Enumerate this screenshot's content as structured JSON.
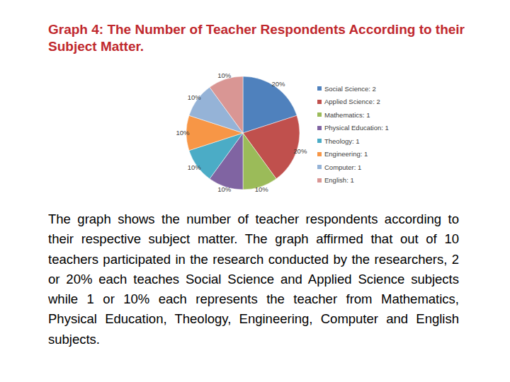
{
  "chart_data": {
    "type": "pie",
    "title": "Graph 4: The Number of Teacher Respondents According to their Subject Matter.",
    "categories": [
      "Social Science: 2",
      "Applied Science: 2",
      "Mathematics: 1",
      "Physical Education: 1",
      "Theology: 1",
      "Engineering: 1",
      "Computer: 1",
      "English: 1"
    ],
    "values": [
      20,
      20,
      10,
      10,
      10,
      10,
      10,
      10
    ],
    "value_labels": [
      "20%",
      "20%",
      "10%",
      "10%",
      "10%",
      "10%",
      "10%",
      "10%"
    ],
    "colors": [
      "#4f81bd",
      "#c0504d",
      "#9bbb59",
      "#8064a2",
      "#4bacc6",
      "#f79646",
      "#95b3d7",
      "#d99694"
    ],
    "data_labels": true,
    "legend": "right",
    "caption": "The graph shows the number of teacher respondents according to their respective subject matter. The graph affirmed that out of 10 teachers participated in the research conducted by the researchers, 2 or 20% each teaches Social Science and Applied Science subjects while 1 or 10% each represents the teacher from Mathematics, Physical Education, Theology, Engineering, Computer and English subjects."
  }
}
